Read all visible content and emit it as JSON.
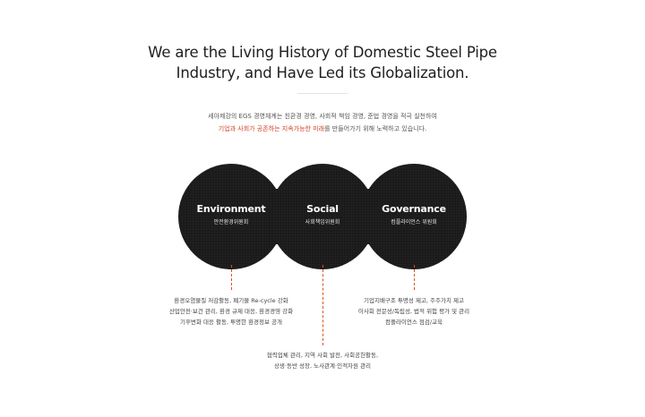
{
  "headline": {
    "line1": "We are the Living History of Domestic Steel Pipe",
    "line2": "Industry, and Have Led its Globalization."
  },
  "intro": {
    "line1": "세아제강의 EGS 경영체계는 친환경 경영, 사회적 책임 경영, 준법 경영을 적극 실천하여",
    "line2_accent": "기업과 사회가 공존하는 지속가능한 미래",
    "line2_rest": "를 만들어가기 위해 노력하고 있습니다."
  },
  "pillars": [
    {
      "title": "Environment",
      "subtitle": "안전환경위원회",
      "details": [
        "환경오염물질 저감활동, 폐기물 Re-cycle 강화",
        "산업안전·보건 관리, 환경 규제 대응, 환경경영 강화",
        "기후변화 대응 활동, 투명한 환경정보 공개"
      ]
    },
    {
      "title": "Social",
      "subtitle": "사회책임위원회",
      "details": [
        "협력업체 관리, 지역 사회 발전, 사회공헌활동,",
        "상생·동반 성장, 노사관계·인적자원 관리"
      ]
    },
    {
      "title": "Governance",
      "subtitle": "컴플라이언스 위원회",
      "details": [
        "기업지배구조 투명성 제고, 주주가치 제고",
        "이사회 전문성/독립성, 법적 위험 평가 및 관리",
        "컴플라이언스 점검/교육"
      ]
    }
  ],
  "colors": {
    "circle": "#1b1a1a",
    "accent": "#d2442a",
    "dash": "#d9531e"
  }
}
